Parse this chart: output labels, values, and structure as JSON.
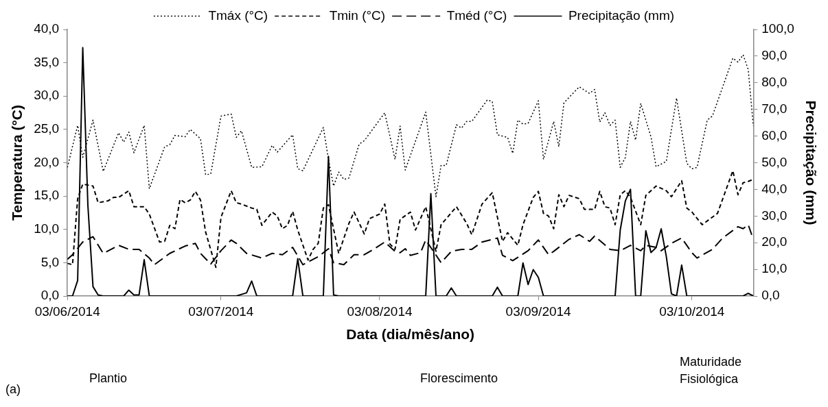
{
  "chart_data": {
    "type": "line",
    "xlabel": "Data (dia/mês/ano)",
    "ylabel": "Temperatura (°C)",
    "y2label": "Precipitação (mm)",
    "xlim": [
      "2014-06-03",
      "2014-10-15"
    ],
    "xticks": [
      {
        "value": "2014-06-03",
        "label": "03/06/2014"
      },
      {
        "value": "2014-07-03",
        "label": "03/07/2014"
      },
      {
        "value": "2014-08-03",
        "label": "03/08/2014"
      },
      {
        "value": "2014-09-03",
        "label": "03/09/2014"
      },
      {
        "value": "2014-10-03",
        "label": "03/10/2014"
      }
    ],
    "ylim": [
      0,
      40
    ],
    "yticks": [
      {
        "value": 0,
        "label": "0,0"
      },
      {
        "value": 5,
        "label": "5,0"
      },
      {
        "value": 10,
        "label": "10,0"
      },
      {
        "value": 15,
        "label": "15,0"
      },
      {
        "value": 20,
        "label": "20,0"
      },
      {
        "value": 25,
        "label": "25,0"
      },
      {
        "value": 30,
        "label": "30,0"
      },
      {
        "value": 35,
        "label": "35,0"
      },
      {
        "value": 40,
        "label": "40,0"
      }
    ],
    "y2lim": [
      0,
      100
    ],
    "y2ticks": [
      {
        "value": 0,
        "label": "0,0"
      },
      {
        "value": 10,
        "label": "10,0"
      },
      {
        "value": 20,
        "label": "20,0"
      },
      {
        "value": 30,
        "label": "30,0"
      },
      {
        "value": 40,
        "label": "40,0"
      },
      {
        "value": 50,
        "label": "50,0"
      },
      {
        "value": 60,
        "label": "60,0"
      },
      {
        "value": 70,
        "label": "70,0"
      },
      {
        "value": 80,
        "label": "80,0"
      },
      {
        "value": 90,
        "label": "90,0"
      },
      {
        "value": 100,
        "label": "100,0"
      }
    ],
    "legend": "top",
    "marker": "none",
    "annotations": [
      "Plantio",
      "Florescimento",
      "Maturidade\nFisiológica",
      "(a)"
    ],
    "series": [
      {
        "name": "Tmáx (°C)",
        "color": "#000000",
        "line_style": "dotted",
        "x": [
          "2014-06-03",
          "2014-06-05",
          "2014-06-06",
          "2014-06-08",
          "2014-06-10",
          "2014-06-13",
          "2014-06-14",
          "2014-06-15",
          "2014-06-16",
          "2014-06-18",
          "2014-06-19",
          "2014-06-22",
          "2014-06-23",
          "2014-06-24",
          "2014-06-26",
          "2014-06-27",
          "2014-06-29",
          "2014-06-30",
          "2014-07-01",
          "2014-07-03",
          "2014-07-05",
          "2014-07-06",
          "2014-07-07",
          "2014-07-09",
          "2014-07-11",
          "2014-07-13",
          "2014-07-14",
          "2014-07-17",
          "2014-07-18",
          "2014-07-19",
          "2014-07-23",
          "2014-07-24",
          "2014-07-25",
          "2014-07-26",
          "2014-07-27",
          "2014-07-28",
          "2014-07-30",
          "2014-07-31",
          "2014-08-04",
          "2014-08-06",
          "2014-08-07",
          "2014-08-08",
          "2014-08-12",
          "2014-08-14",
          "2014-08-15",
          "2014-08-16",
          "2014-08-18",
          "2014-08-19",
          "2014-08-20",
          "2014-08-21",
          "2014-08-24",
          "2014-08-25",
          "2014-08-26",
          "2014-08-28",
          "2014-08-29",
          "2014-08-30",
          "2014-08-31",
          "2014-09-01",
          "2014-09-03",
          "2014-09-04",
          "2014-09-06",
          "2014-09-07",
          "2014-09-08",
          "2014-09-11",
          "2014-09-13",
          "2014-09-14",
          "2014-09-15",
          "2014-09-16",
          "2014-09-17",
          "2014-09-18",
          "2014-09-19",
          "2014-09-20",
          "2014-09-21",
          "2014-09-22",
          "2014-09-23",
          "2014-09-25",
          "2014-09-26",
          "2014-09-28",
          "2014-09-30",
          "2014-10-02",
          "2014-10-03",
          "2014-10-04",
          "2014-10-06",
          "2014-10-07",
          "2014-10-11",
          "2014-10-12",
          "2014-10-13",
          "2014-10-14",
          "2014-10-15"
        ],
        "values": [
          19.3,
          25.6,
          20.8,
          26.4,
          18.7,
          24.5,
          23.1,
          24.6,
          21.5,
          25.6,
          16.1,
          22.4,
          22.7,
          24.1,
          23.9,
          25.0,
          23.6,
          18.2,
          18.3,
          27.0,
          27.3,
          23.8,
          24.8,
          19.3,
          19.4,
          22.6,
          21.6,
          24.2,
          19.1,
          18.8,
          25.3,
          20.5,
          16.5,
          18.6,
          17.5,
          17.7,
          22.8,
          23.3,
          27.5,
          20.5,
          25.5,
          18.9,
          27.6,
          14.9,
          19.6,
          19.6,
          25.7,
          25.2,
          26.2,
          26.2,
          29.4,
          29.2,
          24.2,
          23.8,
          21.4,
          26.4,
          25.8,
          25.9,
          29.3,
          20.5,
          26.2,
          22.4,
          29.0,
          31.4,
          30.4,
          31.0,
          26.1,
          27.5,
          25.6,
          26.4,
          19.3,
          20.8,
          26.2,
          23.4,
          28.9,
          23.9,
          19.4,
          20.2,
          29.7,
          19.9,
          19.1,
          19.3,
          26.4,
          27.0,
          35.7,
          35.1,
          36.2,
          34.0,
          25.5
        ]
      },
      {
        "name": "Tmin (°C)",
        "color": "#000000",
        "line_style": "dashed",
        "x": [
          "2014-06-03",
          "2014-06-04",
          "2014-06-05",
          "2014-06-06",
          "2014-06-08",
          "2014-06-09",
          "2014-06-11",
          "2014-06-12",
          "2014-06-13",
          "2014-06-15",
          "2014-06-16",
          "2014-06-18",
          "2014-06-19",
          "2014-06-21",
          "2014-06-22",
          "2014-06-23",
          "2014-06-24",
          "2014-06-25",
          "2014-06-26",
          "2014-06-27",
          "2014-06-28",
          "2014-06-29",
          "2014-06-30",
          "2014-07-02",
          "2014-07-03",
          "2014-07-05",
          "2014-07-06",
          "2014-07-07",
          "2014-07-09",
          "2014-07-10",
          "2014-07-11",
          "2014-07-13",
          "2014-07-14",
          "2014-07-15",
          "2014-07-16",
          "2014-07-17",
          "2014-07-18",
          "2014-07-20",
          "2014-07-21",
          "2014-07-22",
          "2014-07-23",
          "2014-07-24",
          "2014-07-26",
          "2014-07-28",
          "2014-07-29",
          "2014-07-31",
          "2014-08-01",
          "2014-08-03",
          "2014-08-04",
          "2014-08-05",
          "2014-08-06",
          "2014-08-07",
          "2014-08-09",
          "2014-08-10",
          "2014-08-12",
          "2014-08-14",
          "2014-08-15",
          "2014-08-18",
          "2014-08-20",
          "2014-08-21",
          "2014-08-23",
          "2014-08-25",
          "2014-08-27",
          "2014-08-28",
          "2014-08-30",
          "2014-08-31",
          "2014-09-02",
          "2014-09-03",
          "2014-09-04",
          "2014-09-05",
          "2014-09-06",
          "2014-09-07",
          "2014-09-08",
          "2014-09-09",
          "2014-09-11",
          "2014-09-12",
          "2014-09-14",
          "2014-09-15",
          "2014-09-16",
          "2014-09-17",
          "2014-09-18",
          "2014-09-19",
          "2014-09-20",
          "2014-09-21",
          "2014-09-23",
          "2014-09-24",
          "2014-09-26",
          "2014-09-28",
          "2014-09-29",
          "2014-10-01",
          "2014-10-02",
          "2014-10-03",
          "2014-10-05",
          "2014-10-08",
          "2014-10-11",
          "2014-10-12",
          "2014-10-13",
          "2014-10-14",
          "2014-10-15"
        ],
        "values": [
          4.9,
          4.7,
          14.6,
          16.8,
          16.5,
          14.0,
          14.3,
          14.8,
          14.8,
          15.8,
          13.4,
          13.4,
          12.3,
          8.1,
          8.2,
          10.6,
          10.1,
          14.5,
          14.0,
          14.4,
          15.7,
          14.4,
          9.6,
          4.3,
          11.8,
          15.8,
          14.0,
          13.8,
          13.2,
          13.0,
          10.6,
          12.6,
          12.0,
          10.1,
          10.6,
          12.7,
          9.9,
          5.4,
          7.0,
          7.9,
          13.2,
          13.7,
          6.4,
          10.9,
          12.6,
          9.3,
          11.6,
          12.3,
          13.8,
          7.8,
          7.0,
          11.5,
          12.6,
          9.9,
          13.4,
          6.7,
          10.7,
          13.4,
          10.9,
          9.2,
          13.8,
          15.5,
          8.2,
          9.5,
          7.6,
          10.7,
          14.8,
          15.7,
          12.4,
          12.0,
          10.1,
          15.2,
          13.4,
          15.1,
          14.6,
          13.0,
          13.0,
          15.7,
          13.4,
          13.2,
          10.7,
          15.2,
          15.8,
          14.8,
          10.7,
          15.1,
          16.5,
          15.8,
          14.9,
          17.3,
          13.2,
          12.6,
          10.7,
          12.4,
          18.8,
          15.2,
          17.0,
          17.2,
          17.5
        ]
      },
      {
        "name": "Tméd (°C)",
        "color": "#000000",
        "line_style": "dashed",
        "x": [
          "2014-06-03",
          "2014-06-04",
          "2014-06-06",
          "2014-06-08",
          "2014-06-10",
          "2014-06-13",
          "2014-06-15",
          "2014-06-17",
          "2014-06-19",
          "2014-06-20",
          "2014-06-23",
          "2014-06-26",
          "2014-06-28",
          "2014-06-29",
          "2014-07-01",
          "2014-07-03",
          "2014-07-05",
          "2014-07-06",
          "2014-07-08",
          "2014-07-11",
          "2014-07-13",
          "2014-07-15",
          "2014-07-17",
          "2014-07-19",
          "2014-07-22",
          "2014-07-24",
          "2014-07-25",
          "2014-07-27",
          "2014-07-29",
          "2014-07-31",
          "2014-08-02",
          "2014-08-04",
          "2014-08-06",
          "2014-08-07",
          "2014-08-08",
          "2014-08-09",
          "2014-08-11",
          "2014-08-12",
          "2014-08-15",
          "2014-08-17",
          "2014-08-19",
          "2014-08-21",
          "2014-08-23",
          "2014-08-26",
          "2014-08-27",
          "2014-08-29",
          "2014-09-01",
          "2014-09-03",
          "2014-09-05",
          "2014-09-06",
          "2014-09-09",
          "2014-09-11",
          "2014-09-13",
          "2014-09-14",
          "2014-09-17",
          "2014-09-19",
          "2014-09-21",
          "2014-09-23",
          "2014-09-24",
          "2014-09-26",
          "2014-09-27",
          "2014-09-29",
          "2014-10-01",
          "2014-10-03",
          "2014-10-04",
          "2014-10-07",
          "2014-10-09",
          "2014-10-12",
          "2014-10-13",
          "2014-10-14",
          "2014-10-15"
        ],
        "values": [
          5.5,
          6.2,
          8.1,
          8.9,
          6.4,
          7.6,
          7.0,
          7.0,
          5.7,
          4.7,
          6.4,
          7.5,
          7.9,
          6.4,
          4.8,
          6.8,
          8.4,
          7.9,
          6.4,
          5.7,
          6.4,
          6.2,
          7.3,
          4.7,
          5.9,
          7.1,
          5.0,
          4.7,
          6.2,
          6.2,
          7.1,
          8.1,
          6.7,
          6.5,
          7.1,
          6.1,
          6.5,
          8.4,
          5.0,
          6.7,
          7.0,
          7.0,
          8.1,
          8.7,
          6.1,
          5.3,
          6.8,
          8.4,
          6.2,
          6.7,
          8.5,
          9.2,
          8.2,
          9.0,
          7.0,
          6.8,
          7.6,
          6.8,
          7.6,
          7.3,
          6.8,
          7.9,
          8.7,
          6.5,
          5.7,
          7.0,
          8.7,
          10.4,
          10.1,
          10.7,
          8.5
        ]
      },
      {
        "name": "Precipitação (mm)",
        "color": "#000000",
        "line_style": "solid",
        "axis": "y2",
        "x": [
          "2014-06-03",
          "2014-06-04",
          "2014-06-05",
          "2014-06-06",
          "2014-06-07",
          "2014-06-08",
          "2014-06-09",
          "2014-06-10",
          "2014-06-14",
          "2014-06-15",
          "2014-06-16",
          "2014-06-17",
          "2014-06-18",
          "2014-06-19",
          "2014-07-06",
          "2014-07-08",
          "2014-07-09",
          "2014-07-10",
          "2014-07-17",
          "2014-07-18",
          "2014-07-19",
          "2014-07-23",
          "2014-07-24",
          "2014-07-25",
          "2014-07-26",
          "2014-08-12",
          "2014-08-13",
          "2014-08-14",
          "2014-08-16",
          "2014-08-17",
          "2014-08-18",
          "2014-08-25",
          "2014-08-26",
          "2014-08-27",
          "2014-08-30",
          "2014-08-31",
          "2014-09-01",
          "2014-09-02",
          "2014-09-03",
          "2014-09-04",
          "2014-09-18",
          "2014-09-19",
          "2014-09-20",
          "2014-09-21",
          "2014-09-22",
          "2014-09-23",
          "2014-09-24",
          "2014-09-25",
          "2014-09-26",
          "2014-09-27",
          "2014-09-28",
          "2014-09-29",
          "2014-09-30",
          "2014-10-01",
          "2014-10-02",
          "2014-10-13",
          "2014-10-14",
          "2014-10-15"
        ],
        "values": [
          0,
          0,
          5.8,
          93.2,
          34.0,
          3.5,
          0.4,
          0,
          0,
          2.2,
          0.4,
          0.4,
          13.6,
          0,
          0,
          1.2,
          5.6,
          0,
          0,
          14.0,
          0,
          0,
          52.4,
          0.4,
          0,
          0,
          38.4,
          0,
          0,
          3.0,
          0,
          0,
          3.3,
          0,
          0,
          12.4,
          4.3,
          9.9,
          7.0,
          0,
          0,
          24.8,
          35.7,
          40.0,
          0,
          0,
          24.5,
          16.3,
          18.2,
          25.2,
          14.8,
          0.8,
          0,
          11.6,
          0,
          0,
          1.0,
          0
        ]
      }
    ]
  }
}
